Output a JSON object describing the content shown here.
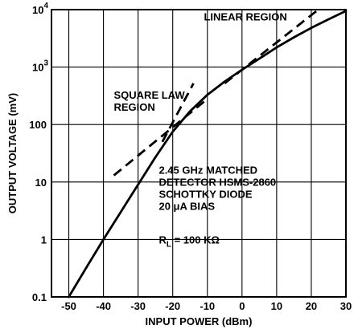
{
  "chart_data": {
    "type": "line",
    "xlabel": "INPUT POWER (dBm)",
    "ylabel": "OUTPUT VOLTAGE (mV)",
    "xlim": [
      -55,
      30
    ],
    "ylim": [
      0.1,
      10000
    ],
    "y_scale": "log",
    "grid": true,
    "x_ticks": [
      {
        "value": -50,
        "label": "-50"
      },
      {
        "value": -40,
        "label": "-40"
      },
      {
        "value": -30,
        "label": "-30"
      },
      {
        "value": -20,
        "label": "-20"
      },
      {
        "value": -10,
        "label": "-10"
      },
      {
        "value": 0,
        "label": "0"
      },
      {
        "value": 10,
        "label": "10"
      },
      {
        "value": 20,
        "label": "20"
      },
      {
        "value": 30,
        "label": "30"
      }
    ],
    "y_ticks": [
      {
        "value": 0.1,
        "mant": "0.1",
        "exp": ""
      },
      {
        "value": 1,
        "mant": "1",
        "exp": ""
      },
      {
        "value": 10,
        "mant": "10",
        "exp": ""
      },
      {
        "value": 100,
        "mant": "100",
        "exp": ""
      },
      {
        "value": 1000,
        "mant": "10",
        "exp": "3"
      },
      {
        "value": 10000,
        "mant": "10",
        "exp": "4"
      }
    ],
    "series": [
      {
        "style": "solid",
        "x": [
          -50,
          -45,
          -40,
          -35,
          -30,
          -25,
          -20,
          -15,
          -10,
          -5,
          0,
          5,
          10,
          15,
          20,
          25,
          30
        ],
        "y": [
          0.1,
          0.32,
          1.0,
          3.0,
          9.0,
          27,
          75,
          170,
          330,
          560,
          900,
          1400,
          2200,
          3300,
          4800,
          6800,
          9500
        ]
      },
      {
        "style": "dashed",
        "x": [
          -37,
          -10
        ],
        "y": [
          13,
          280
        ]
      },
      {
        "style": "dashed",
        "x": [
          -23,
          -14
        ],
        "y": [
          50,
          520
        ]
      },
      {
        "style": "dashed",
        "x": [
          -5,
          22
        ],
        "y": [
          520,
          10000
        ]
      }
    ],
    "annotations": [
      {
        "lines": [
          "LINEAR REGION"
        ],
        "x": -11,
        "y": 6500
      },
      {
        "lines": [
          "SQUARE LAW",
          "REGION"
        ],
        "x": -37,
        "y": 280
      },
      {
        "lines": [
          "2.45 GHz MATCHED",
          "DETECTOR HSMS-2860",
          "SCHOTTKY DIODE",
          "20 μA BIAS"
        ],
        "x": -24,
        "y": 14
      },
      {
        "lines": [
          "R",
          "L",
          " = 100 KΩ"
        ],
        "x": -24,
        "y": 0.85,
        "subscript_line": true
      }
    ]
  }
}
